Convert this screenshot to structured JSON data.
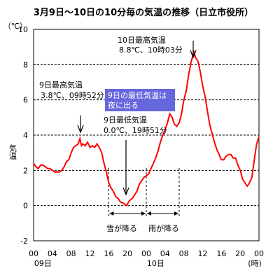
{
  "chart_data": {
    "type": "line",
    "title": "3月9日〜10日の10分毎の気温の推移（日立市役所）",
    "ylabel": "気温",
    "yunit": "（℃）",
    "xunit": "(時)",
    "ylim": [
      -2,
      10
    ],
    "yticks": [
      "-2",
      "0",
      "2",
      "4",
      "6",
      "8",
      "10"
    ],
    "xlim": [
      0,
      48
    ],
    "xticks": [
      {
        "h": 0,
        "label": "00"
      },
      {
        "h": 4,
        "label": "04"
      },
      {
        "h": 8,
        "label": "08"
      },
      {
        "h": 12,
        "label": "12"
      },
      {
        "h": 16,
        "label": "16"
      },
      {
        "h": 20,
        "label": "20"
      },
      {
        "h": 24,
        "label": "00"
      },
      {
        "h": 28,
        "label": "04"
      },
      {
        "h": 32,
        "label": "08"
      },
      {
        "h": 36,
        "label": "12"
      },
      {
        "h": 40,
        "label": "16"
      },
      {
        "h": 44,
        "label": "20"
      },
      {
        "h": 48,
        "label": "00"
      }
    ],
    "day_labels": [
      {
        "h": 2,
        "label": "09日"
      },
      {
        "h": 26,
        "label": "10日"
      }
    ],
    "grid": "horizontal dashed",
    "line_color": "#ff0000",
    "series": [
      {
        "name": "気温",
        "x": [
          0,
          0.5,
          1,
          1.5,
          2,
          2.5,
          3,
          3.5,
          4,
          4.5,
          5,
          5.5,
          6,
          6.5,
          7,
          7.5,
          8,
          8.5,
          9,
          9.5,
          9.87,
          10.2,
          10.5,
          11,
          11.5,
          12,
          12.5,
          13,
          13.5,
          14,
          14.5,
          15,
          15.5,
          16,
          16.5,
          17,
          17.5,
          18,
          18.5,
          19,
          19.5,
          19.85,
          20.2,
          20.5,
          21,
          21.5,
          22,
          22.5,
          23,
          23.5,
          24,
          24.5,
          25,
          25.5,
          26,
          26.5,
          27,
          27.5,
          28,
          28.5,
          29,
          29.5,
          30,
          30.5,
          31,
          31.5,
          32,
          32.5,
          33,
          33.5,
          34,
          34.05,
          34.5,
          35,
          35.5,
          36,
          36.5,
          37,
          37.5,
          38,
          38.5,
          39,
          39.5,
          40,
          40.5,
          41,
          41.5,
          42,
          42.5,
          43,
          43.5,
          44,
          44.5,
          45,
          45.5,
          46,
          46.5,
          47,
          47.5,
          48
        ],
        "values": [
          2.4,
          2.2,
          2.1,
          2.3,
          2.3,
          2.2,
          2.1,
          2.1,
          2.0,
          1.9,
          1.9,
          1.9,
          2.0,
          2.2,
          2.5,
          2.6,
          3.0,
          3.3,
          3.4,
          3.5,
          3.8,
          3.4,
          3.5,
          3.4,
          3.6,
          3.3,
          3.4,
          3.3,
          3.5,
          3.3,
          3.0,
          2.4,
          1.9,
          1.3,
          1.0,
          0.8,
          0.5,
          0.4,
          0.2,
          0.15,
          0.05,
          0.0,
          0.2,
          0.3,
          0.4,
          0.6,
          0.8,
          1.2,
          1.4,
          1.6,
          1.7,
          1.8,
          2.1,
          2.4,
          2.7,
          3.1,
          3.6,
          4.0,
          4.3,
          4.7,
          5.2,
          5.0,
          4.6,
          4.5,
          4.7,
          5.2,
          6.0,
          6.5,
          7.4,
          8.1,
          8.6,
          8.8,
          8.4,
          8.2,
          7.6,
          6.8,
          6.2,
          5.4,
          4.6,
          4.1,
          3.6,
          3.2,
          2.9,
          2.6,
          2.6,
          2.8,
          2.9,
          2.9,
          2.7,
          2.7,
          2.3,
          2.0,
          1.5,
          1.3,
          1.1,
          1.3,
          1.6,
          2.6,
          3.5,
          3.9
        ]
      }
    ],
    "annotations": {
      "max_10": {
        "title": "10日最高気温",
        "detail": "8.8℃、10時03分"
      },
      "max_9": {
        "title": "9日最高気温",
        "detail": "3.8℃、09時52分"
      },
      "min_9": {
        "title": "9日最低気温",
        "detail": "0.0℃、19時51分"
      },
      "callout": {
        "line1": "9日の最低気温は",
        "line2": "夜に出る",
        "fill": "#6666dd"
      },
      "snow": "雪が降る",
      "rain": "雨が降る",
      "snow_range": [
        16,
        24
      ],
      "rain_range": [
        24,
        31
      ]
    }
  }
}
